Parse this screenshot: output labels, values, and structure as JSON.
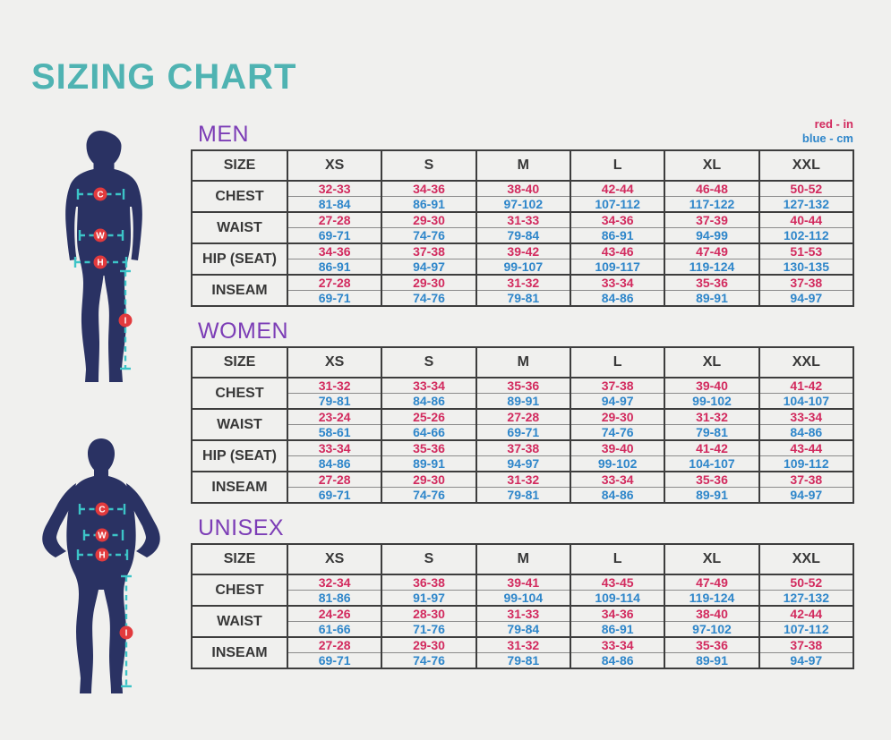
{
  "page": {
    "title": "SIZING CHART"
  },
  "legend": {
    "inches": "red - in",
    "cm": "blue - cm"
  },
  "colors": {
    "title": "#4fb3b2",
    "section_heading": "#7c3db6",
    "inches_text": "#d22a5e",
    "cm_text": "#2e86ca",
    "silhouette": "#2a3263",
    "measure_line": "#3cc4c7",
    "marker_circle": "#e23a3d",
    "table_border": "#3d3d3d",
    "background": "#f0f0ee"
  },
  "figures": {
    "male": {
      "chest": "C",
      "waist": "W",
      "hip": "H",
      "inseam": "I"
    },
    "female": {
      "chest": "C",
      "waist": "W",
      "hip": "H",
      "inseam": "I"
    }
  },
  "tables": [
    {
      "id": "men",
      "label": "MEN",
      "size_header": "SIZE",
      "sizes": [
        "XS",
        "S",
        "M",
        "L",
        "XL",
        "XXL"
      ],
      "rows": [
        {
          "label": "CHEST",
          "in": [
            "32-33",
            "34-36",
            "38-40",
            "42-44",
            "46-48",
            "50-52"
          ],
          "cm": [
            "81-84",
            "86-91",
            "97-102",
            "107-112",
            "117-122",
            "127-132"
          ]
        },
        {
          "label": "WAIST",
          "in": [
            "27-28",
            "29-30",
            "31-33",
            "34-36",
            "37-39",
            "40-44"
          ],
          "cm": [
            "69-71",
            "74-76",
            "79-84",
            "86-91",
            "94-99",
            "102-112"
          ]
        },
        {
          "label": "HIP (SEAT)",
          "in": [
            "34-36",
            "37-38",
            "39-42",
            "43-46",
            "47-49",
            "51-53"
          ],
          "cm": [
            "86-91",
            "94-97",
            "99-107",
            "109-117",
            "119-124",
            "130-135"
          ]
        },
        {
          "label": "INSEAM",
          "in": [
            "27-28",
            "29-30",
            "31-32",
            "33-34",
            "35-36",
            "37-38"
          ],
          "cm": [
            "69-71",
            "74-76",
            "79-81",
            "84-86",
            "89-91",
            "94-97"
          ]
        }
      ]
    },
    {
      "id": "women",
      "label": "WOMEN",
      "size_header": "SIZE",
      "sizes": [
        "XS",
        "S",
        "M",
        "L",
        "XL",
        "XXL"
      ],
      "rows": [
        {
          "label": "CHEST",
          "in": [
            "31-32",
            "33-34",
            "35-36",
            "37-38",
            "39-40",
            "41-42"
          ],
          "cm": [
            "79-81",
            "84-86",
            "89-91",
            "94-97",
            "99-102",
            "104-107"
          ]
        },
        {
          "label": "WAIST",
          "in": [
            "23-24",
            "25-26",
            "27-28",
            "29-30",
            "31-32",
            "33-34"
          ],
          "cm": [
            "58-61",
            "64-66",
            "69-71",
            "74-76",
            "79-81",
            "84-86"
          ]
        },
        {
          "label": "HIP (SEAT)",
          "in": [
            "33-34",
            "35-36",
            "37-38",
            "39-40",
            "41-42",
            "43-44"
          ],
          "cm": [
            "84-86",
            "89-91",
            "94-97",
            "99-102",
            "104-107",
            "109-112"
          ]
        },
        {
          "label": "INSEAM",
          "in": [
            "27-28",
            "29-30",
            "31-32",
            "33-34",
            "35-36",
            "37-38"
          ],
          "cm": [
            "69-71",
            "74-76",
            "79-81",
            "84-86",
            "89-91",
            "94-97"
          ]
        }
      ]
    },
    {
      "id": "unisex",
      "label": "UNISEX",
      "size_header": "SIZE",
      "sizes": [
        "XS",
        "S",
        "M",
        "L",
        "XL",
        "XXL"
      ],
      "rows": [
        {
          "label": "CHEST",
          "in": [
            "32-34",
            "36-38",
            "39-41",
            "43-45",
            "47-49",
            "50-52"
          ],
          "cm": [
            "81-86",
            "91-97",
            "99-104",
            "109-114",
            "119-124",
            "127-132"
          ]
        },
        {
          "label": "WAIST",
          "in": [
            "24-26",
            "28-30",
            "31-33",
            "34-36",
            "38-40",
            "42-44"
          ],
          "cm": [
            "61-66",
            "71-76",
            "79-84",
            "86-91",
            "97-102",
            "107-112"
          ]
        },
        {
          "label": "INSEAM",
          "in": [
            "27-28",
            "29-30",
            "31-32",
            "33-34",
            "35-36",
            "37-38"
          ],
          "cm": [
            "69-71",
            "74-76",
            "79-81",
            "84-86",
            "89-91",
            "94-97"
          ]
        }
      ]
    }
  ]
}
